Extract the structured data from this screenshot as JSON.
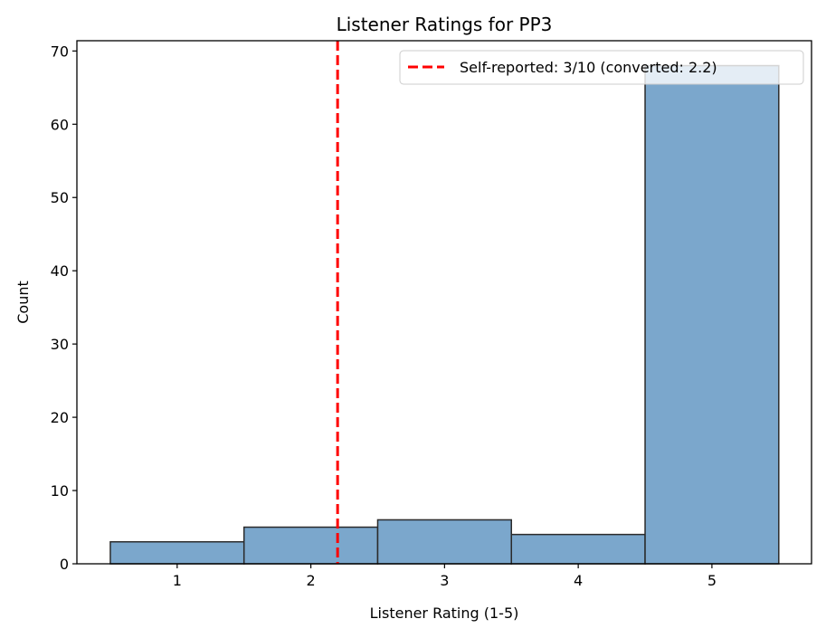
{
  "chart_data": {
    "type": "bar",
    "title": "Listener Ratings for PP3",
    "xlabel": "Listener Rating (1-5)",
    "ylabel": "Count",
    "categories": [
      1,
      2,
      3,
      4,
      5
    ],
    "values": [
      3,
      5,
      6,
      4,
      68
    ],
    "bar_width": 1,
    "xlim": [
      0.25,
      5.745
    ],
    "ylim": [
      0,
      71.4
    ],
    "xticks": [
      "1",
      "2",
      "3",
      "4",
      "5"
    ],
    "yticks": [
      "0",
      "10",
      "20",
      "30",
      "40",
      "50",
      "60",
      "70"
    ],
    "grid": false,
    "bar_color": "#7ba7cc",
    "bar_edge_color": "#2b2b2b",
    "reference_line": {
      "x": 2.2,
      "color": "#ff0000",
      "style": "dashed",
      "label": "Self-reported: 3/10 (converted: 2.2)"
    },
    "legend": {
      "placement": "top-right",
      "entries": [
        "Self-reported: 3/10 (converted: 2.2)"
      ]
    }
  }
}
